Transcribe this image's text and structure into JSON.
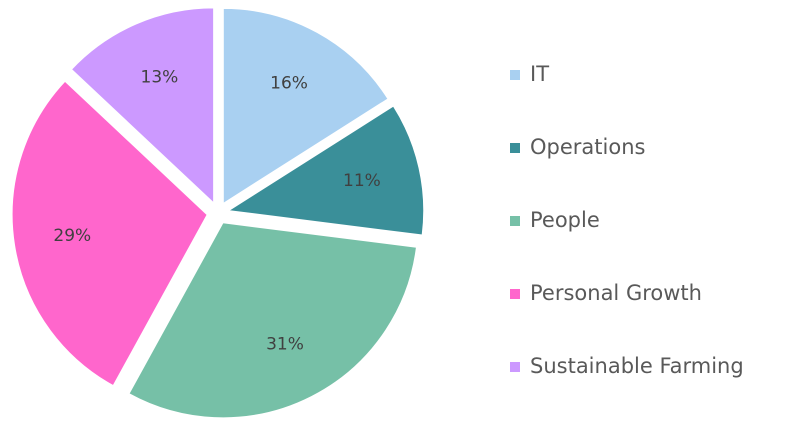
{
  "chart_data": {
    "type": "pie",
    "categories": [
      "IT",
      "Operations",
      "People",
      "Personal Growth",
      "Sustainable Farming"
    ],
    "values": [
      16,
      11,
      31,
      29,
      13
    ],
    "value_labels": [
      "16%",
      "11%",
      "31%",
      "29%",
      "13%"
    ],
    "colors": [
      "#a9d0f1",
      "#3a8f99",
      "#76c0a7",
      "#ff66cc",
      "#cc99ff"
    ],
    "legend": "right"
  }
}
